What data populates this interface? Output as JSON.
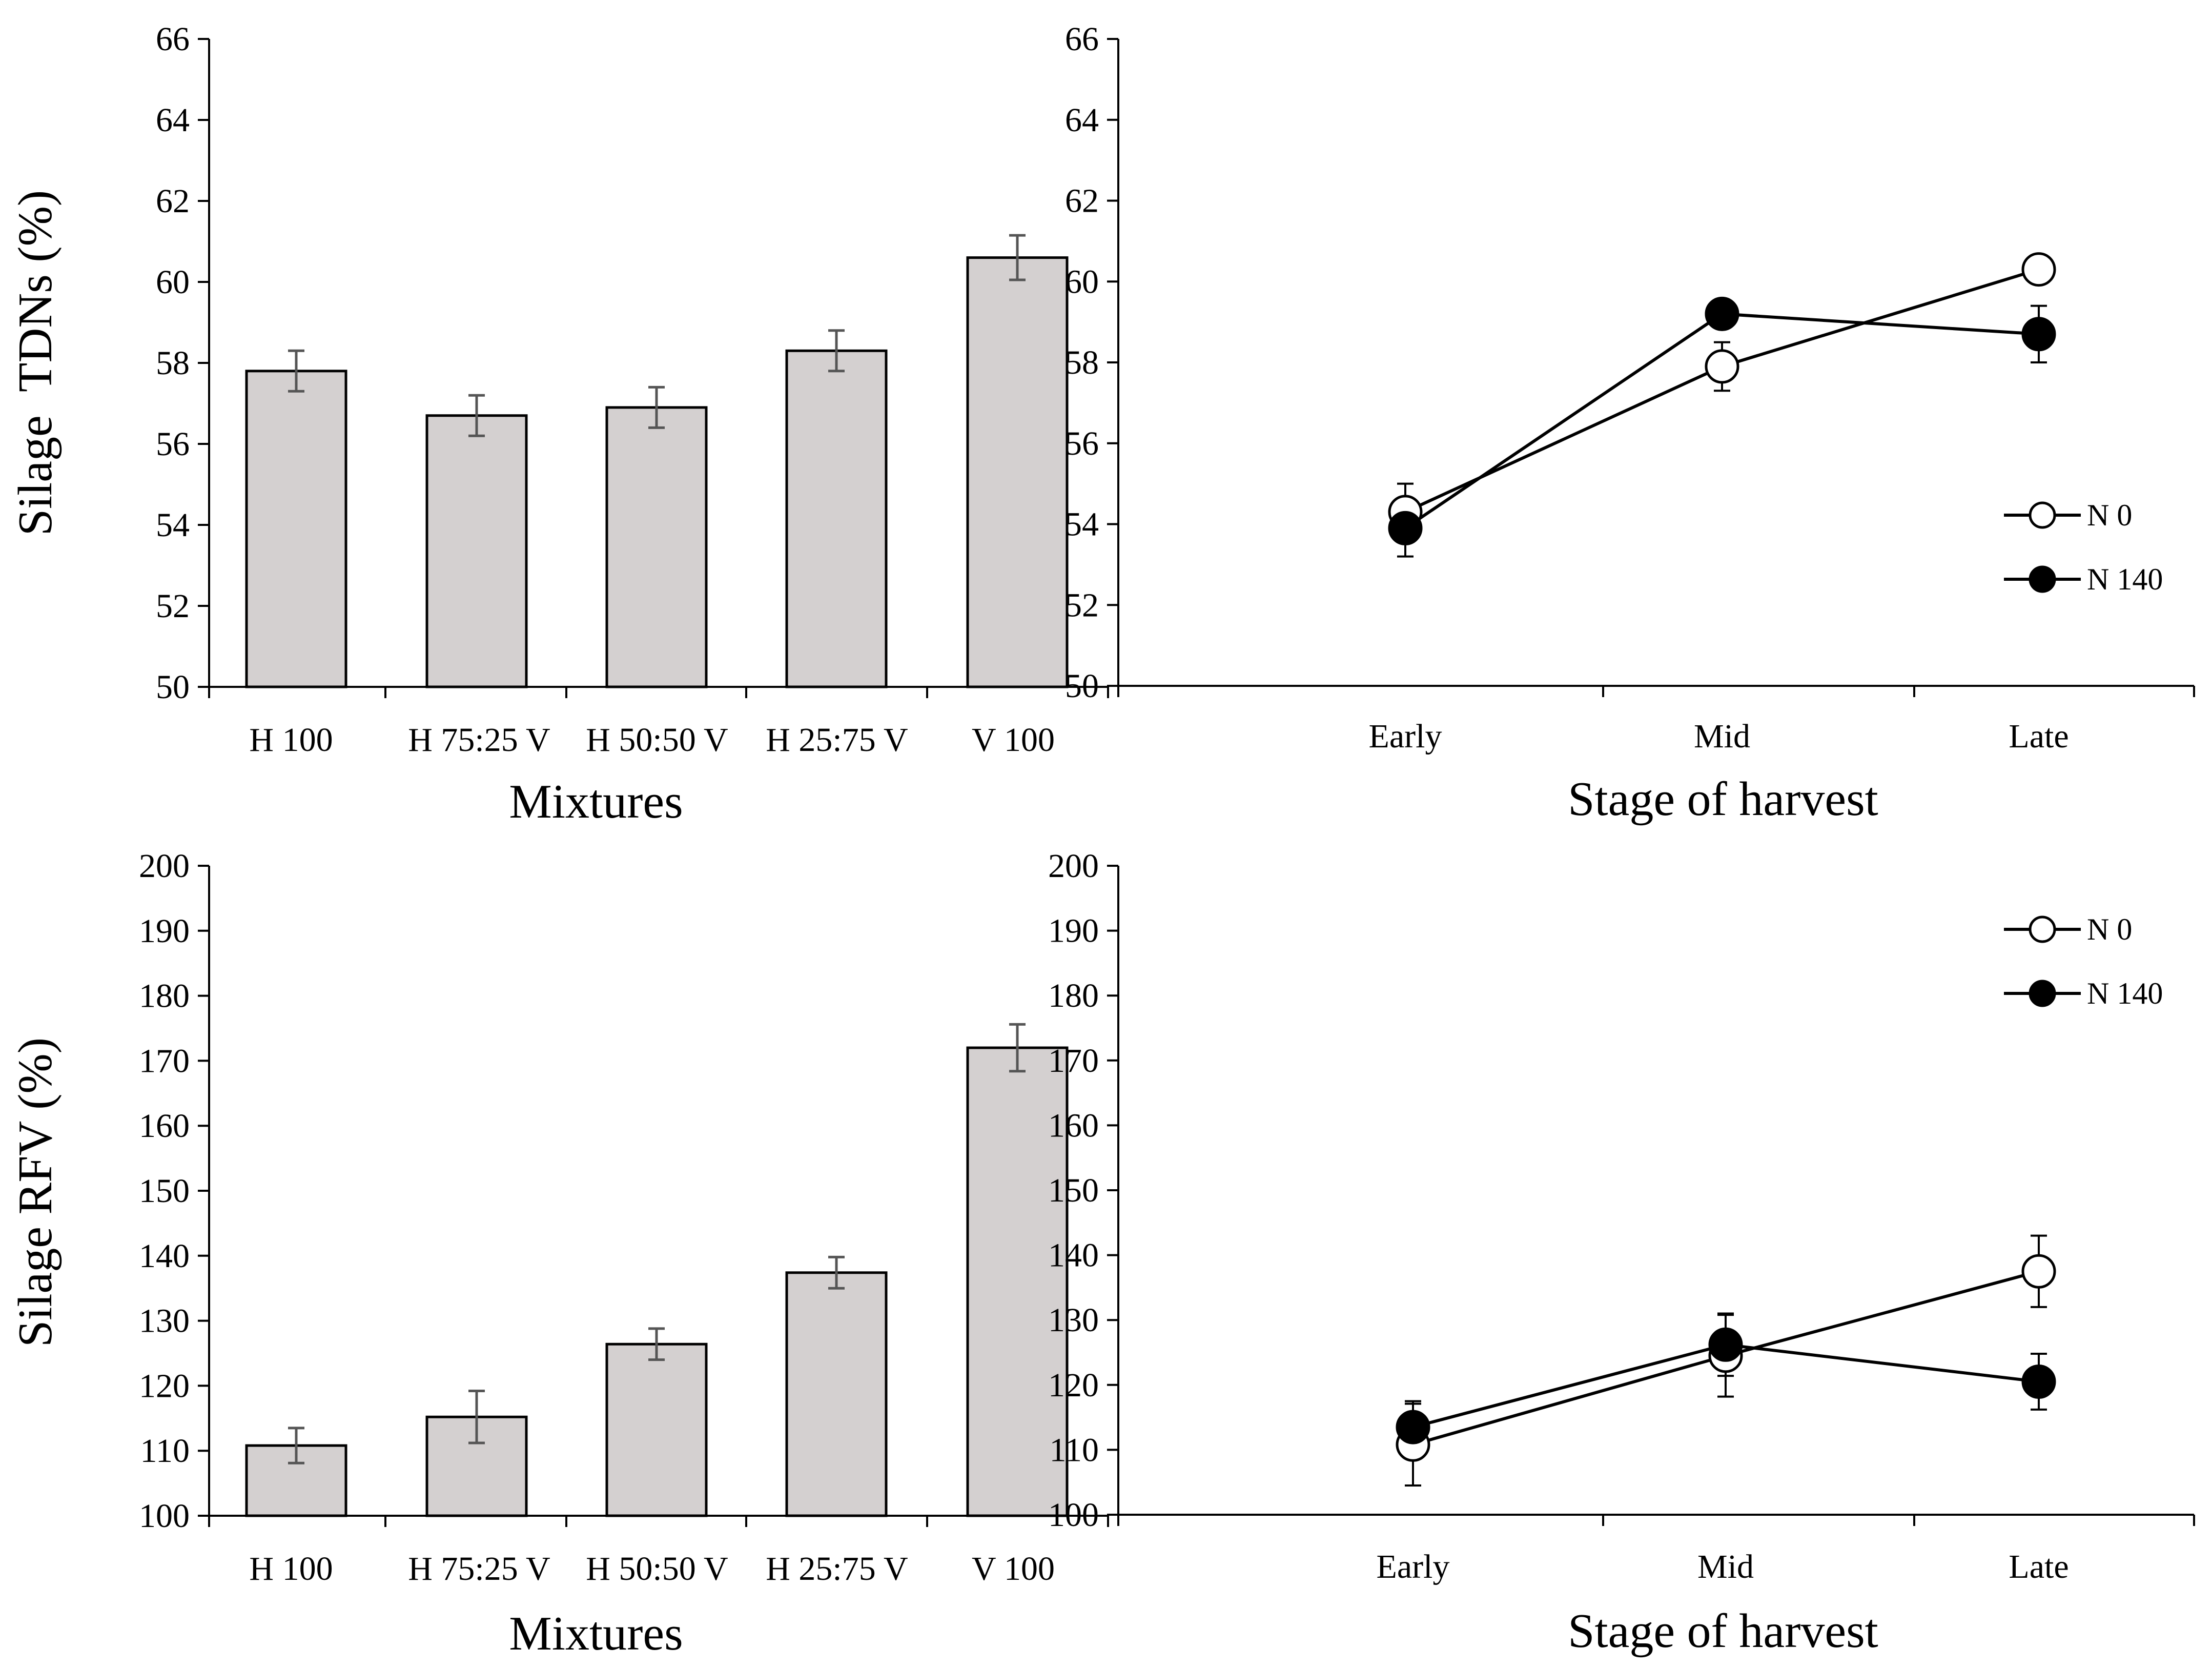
{
  "chart_data": [
    {
      "type": "bar",
      "xlabel": "Mixtures",
      "ylabel": "Silage  TDNs (%)",
      "categories": [
        "H 100",
        "H 75:25 V",
        "H 50:50 V",
        "H 25:75 V",
        "V 100"
      ],
      "values": [
        57.8,
        56.7,
        56.9,
        58.3,
        60.6
      ],
      "errors": [
        0.5,
        0.5,
        0.5,
        0.5,
        0.55
      ],
      "ylim": [
        50,
        66
      ],
      "yticks": [
        "50",
        "52",
        "54",
        "56",
        "58",
        "60",
        "62",
        "64",
        "66"
      ],
      "grid": false,
      "bar_color": "#d4d0d0"
    },
    {
      "type": "line",
      "xlabel": "Stage of harvest",
      "ylabel": "",
      "categories": [
        "Early",
        "Mid",
        "Late"
      ],
      "series": [
        {
          "name": "N 0",
          "values": [
            54.3,
            57.9,
            60.3
          ],
          "errors": [
            0.7,
            0.6,
            0
          ],
          "marker": "open-circle"
        },
        {
          "name": "N 140",
          "values": [
            53.9,
            59.2,
            58.7
          ],
          "errors": [
            0.7,
            0,
            0.7
          ],
          "marker": "filled-circle"
        }
      ],
      "ylim": [
        50,
        66
      ],
      "yticks": [
        "50",
        "52",
        "54",
        "56",
        "58",
        "60",
        "62",
        "64",
        "66"
      ],
      "legend_position": "lower-right",
      "grid": false
    },
    {
      "type": "bar",
      "xlabel": "Mixtures",
      "ylabel": "Silage RFV (%)",
      "categories": [
        "H 100",
        "H 75:25 V",
        "H 50:50 V",
        "H 25:75 V",
        "V 100"
      ],
      "values": [
        110.8,
        115.2,
        126.4,
        137.4,
        172.0
      ],
      "errors": [
        2.7,
        4.0,
        2.4,
        2.4,
        3.6
      ],
      "ylim": [
        100,
        200
      ],
      "yticks": [
        "100",
        "110",
        "120",
        "130",
        "140",
        "150",
        "160",
        "170",
        "180",
        "190",
        "200"
      ],
      "grid": false,
      "bar_color": "#d4d0d0"
    },
    {
      "type": "line",
      "xlabel": "Stage of harvest",
      "ylabel": "",
      "categories": [
        "Early",
        "Mid",
        "Late"
      ],
      "series": [
        {
          "name": "N 0",
          "values": [
            110.8,
            124.5,
            137.5
          ],
          "errors": [
            6.3,
            6.3,
            5.5
          ],
          "marker": "open-circle"
        },
        {
          "name": "N 140",
          "values": [
            113.5,
            126.2,
            120.5
          ],
          "errors": [
            4.0,
            4.8,
            4.3
          ],
          "marker": "filled-circle"
        }
      ],
      "ylim": [
        100,
        200
      ],
      "yticks": [
        "100",
        "110",
        "120",
        "130",
        "140",
        "150",
        "160",
        "170",
        "180",
        "190",
        "200"
      ],
      "legend_position": "top-right",
      "grid": false
    }
  ]
}
